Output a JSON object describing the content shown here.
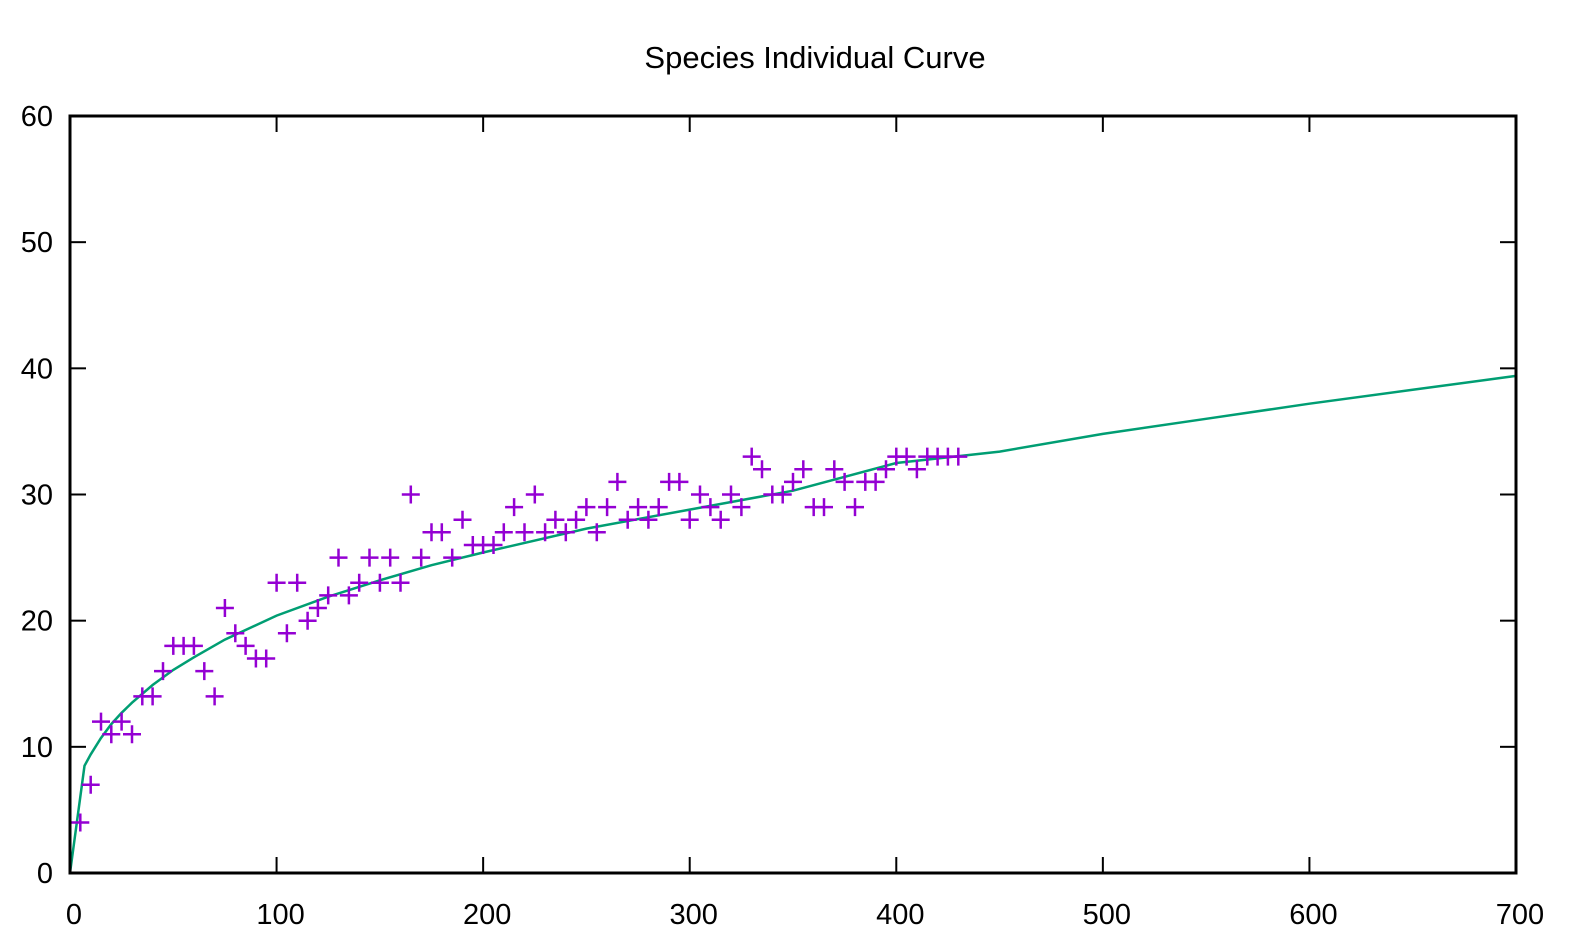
{
  "chart_data": {
    "type": "scatter",
    "title": "Species Individual Curve",
    "xlabel": "",
    "ylabel": "",
    "xlim": [
      0,
      700
    ],
    "ylim": [
      0,
      60
    ],
    "xticks": [
      "0",
      "100",
      "200",
      "300",
      "400",
      "500",
      "600",
      "700"
    ],
    "yticks": [
      "0",
      "10",
      "20",
      "30",
      "40",
      "50",
      "60"
    ],
    "grid": false,
    "legend": "none",
    "colors": {
      "points": "#9400d3",
      "fit": "#009e73",
      "axes": "#000000"
    },
    "series": [
      {
        "kind": "points",
        "marker": "plus",
        "x": [
          5,
          10,
          15,
          20,
          25,
          30,
          35,
          40,
          45,
          50,
          55,
          60,
          65,
          70,
          75,
          80,
          85,
          90,
          95,
          100,
          105,
          110,
          115,
          120,
          125,
          130,
          135,
          140,
          145,
          150,
          155,
          160,
          165,
          170,
          175,
          180,
          185,
          190,
          195,
          200,
          205,
          210,
          215,
          220,
          225,
          230,
          235,
          240,
          245,
          250,
          255,
          260,
          265,
          270,
          275,
          280,
          285,
          290,
          295,
          300,
          305,
          310,
          315,
          320,
          325,
          330,
          335,
          340,
          345,
          350,
          355,
          360,
          365,
          370,
          375,
          380,
          385,
          390,
          395,
          400,
          405,
          410,
          415,
          420,
          425,
          430
        ],
        "y": [
          4,
          7,
          12,
          11,
          12,
          11,
          14,
          14,
          16,
          18,
          18,
          18,
          16,
          14,
          21,
          19,
          18,
          17,
          17,
          23,
          19,
          23,
          20,
          21,
          22,
          25,
          22,
          23,
          25,
          23,
          25,
          23,
          30,
          25,
          27,
          27,
          25,
          28,
          26,
          26,
          26,
          27,
          29,
          27,
          30,
          27,
          28,
          27,
          28,
          29,
          27,
          29,
          31,
          28,
          29,
          28,
          29,
          31,
          31,
          28,
          30,
          29,
          28,
          30,
          29,
          33,
          32,
          30,
          30,
          31,
          32,
          29,
          29,
          32,
          31,
          29,
          31,
          31,
          32,
          33,
          33,
          32,
          33,
          33,
          33,
          33
        ]
      },
      {
        "kind": "line",
        "x": [
          0,
          7,
          10,
          15,
          20,
          25,
          30,
          40,
          50,
          60,
          75,
          100,
          125,
          150,
          175,
          200,
          250,
          300,
          350,
          400,
          450,
          500,
          550,
          600,
          650,
          700
        ],
        "y": [
          0,
          8.5,
          9.4,
          10.7,
          11.8,
          12.7,
          13.5,
          14.9,
          16.1,
          17.1,
          18.5,
          20.4,
          21.9,
          23.2,
          24.4,
          25.4,
          27.3,
          28.8,
          30.3,
          32.5,
          33.4,
          34.8,
          36.0,
          37.2,
          38.3,
          39.4
        ]
      }
    ]
  }
}
